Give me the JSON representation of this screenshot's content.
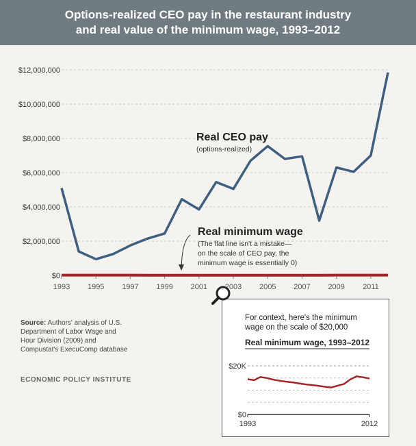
{
  "header": {
    "title_line1": "Options-realized CEO pay in the restaurant industry",
    "title_line2": "and real value of the minimum wage, 1993–2012"
  },
  "colors": {
    "header_bg": "#6f7b80",
    "ceo_line": "#3e5f7f",
    "min_wage_line": "#a3262a",
    "background": "#f4f3ef"
  },
  "source": {
    "label": "Source:",
    "text": "Authors' analysis of U.S. Department of Labor Wage and Hour Division (2009) and Compustat's ExecuComp database",
    "org": "ECONOMIC POLICY INSTITUTE"
  },
  "annotations": {
    "ceo_title": "Real CEO pay",
    "ceo_sub": "(options-realized)",
    "mw_title": "Real minimum wage",
    "mw_note1": "(The flat line isn't a mistake—",
    "mw_note2": "on the scale of CEO pay, the",
    "mw_note3": "minimum wage is essentially 0)"
  },
  "inset": {
    "context_line1": "For context, here's the minimum",
    "context_line2": "wage on the scale of $20,000",
    "title": "Real minimum wage, 1993–2012",
    "icon": "magnifier-icon"
  },
  "chart_data": [
    {
      "type": "line",
      "x": [
        1993,
        1994,
        1995,
        1996,
        1997,
        1998,
        1999,
        2000,
        2001,
        2002,
        2003,
        2004,
        2005,
        2006,
        2007,
        2008,
        2009,
        2010,
        2011,
        2012
      ],
      "series": [
        {
          "name": "Real CEO pay",
          "values": [
            5100000,
            1400000,
            950000,
            1250000,
            1750000,
            2150000,
            2450000,
            4450000,
            3850000,
            5450000,
            5050000,
            6700000,
            7550000,
            6800000,
            6950000,
            3200000,
            6300000,
            6050000,
            7000000,
            11850000
          ]
        },
        {
          "name": "Real minimum wage",
          "values": [
            14500,
            14100,
            15400,
            15000,
            14300,
            13900,
            13500,
            13200,
            12800,
            12400,
            12100,
            11800,
            11400,
            11100,
            11800,
            12500,
            14400,
            15700,
            15300,
            14800
          ]
        }
      ],
      "ylim": [
        0,
        12000000
      ],
      "yticks": [
        "$0",
        "$2,000,000",
        "$4,000,000",
        "$6,000,000",
        "$8,000,000",
        "$10,000,000",
        "$12,000,000"
      ],
      "xticks": [
        "1993",
        "1995",
        "1997",
        "1999",
        "2001",
        "2003",
        "2005",
        "2007",
        "2009",
        "2011"
      ],
      "grid": true
    },
    {
      "type": "line",
      "x": [
        1993,
        1994,
        1995,
        1996,
        1997,
        1998,
        1999,
        2000,
        2001,
        2002,
        2003,
        2004,
        2005,
        2006,
        2007,
        2008,
        2009,
        2010,
        2011,
        2012
      ],
      "series": [
        {
          "name": "Real minimum wage",
          "values": [
            14500,
            14100,
            15400,
            15000,
            14300,
            13900,
            13500,
            13200,
            12800,
            12400,
            12100,
            11800,
            11400,
            11100,
            11800,
            12500,
            14400,
            15700,
            15300,
            14800
          ]
        }
      ],
      "title": "Real minimum wage, 1993–2012",
      "ylim": [
        0,
        20000
      ],
      "yticks": [
        "$0",
        "$20K"
      ],
      "xticks": [
        "1993",
        "2012"
      ],
      "grid": true
    }
  ]
}
